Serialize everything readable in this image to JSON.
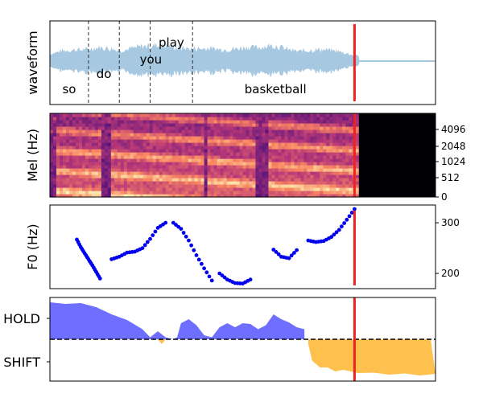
{
  "chart_data": [
    {
      "type": "line",
      "panel": "waveform",
      "ylabel": "waveform",
      "words": [
        {
          "text": "so",
          "pos": "low"
        },
        {
          "text": "do",
          "pos": "mid"
        },
        {
          "text": "you",
          "pos": "mid"
        },
        {
          "text": "play",
          "pos": "high"
        },
        {
          "text": "basketball",
          "pos": "low"
        }
      ],
      "word_boundaries": [
        0.1,
        0.18,
        0.26,
        0.37
      ],
      "marker_t": 0.79,
      "speech_end_t": 0.8,
      "colors": {
        "wave": "#a6c8e0",
        "marker": "#ee2222",
        "boundary": "#333333"
      }
    },
    {
      "type": "heatmap",
      "panel": "mel-spectrogram",
      "ylabel": "Mel (Hz)",
      "yticks": [
        "0",
        "512",
        "1024",
        "2048",
        "4096"
      ],
      "marker_t": 0.79,
      "speech_end_t": 0.8,
      "colormap": "magma"
    },
    {
      "type": "scatter",
      "panel": "f0",
      "ylabel": "F0 (Hz)",
      "ylim": [
        170,
        335
      ],
      "yticks": [
        "200",
        "300"
      ],
      "ytick_values": [
        200,
        300
      ],
      "point_color": "#0000ee",
      "segments": [
        {
          "t": [
            0.07,
            0.08,
            0.09,
            0.1,
            0.11,
            0.12,
            0.13
          ],
          "f0": [
            267,
            252,
            240,
            228,
            216,
            203,
            190
          ]
        },
        {
          "t": [
            0.16,
            0.18,
            0.2,
            0.22,
            0.24,
            0.26,
            0.28,
            0.3
          ],
          "f0": [
            228,
            233,
            241,
            243,
            250,
            268,
            290,
            300
          ]
        },
        {
          "t": [
            0.32,
            0.34,
            0.36,
            0.38,
            0.4,
            0.42
          ],
          "f0": [
            300,
            288,
            265,
            236,
            210,
            186
          ]
        },
        {
          "t": [
            0.44,
            0.46,
            0.48,
            0.5,
            0.52
          ],
          "f0": [
            200,
            188,
            181,
            180,
            188
          ]
        },
        {
          "t": [
            0.58,
            0.6,
            0.62,
            0.64
          ],
          "f0": [
            247,
            233,
            230,
            246
          ]
        },
        {
          "t": [
            0.67,
            0.69,
            0.71,
            0.73,
            0.75,
            0.77,
            0.79
          ],
          "f0": [
            265,
            262,
            264,
            272,
            286,
            306,
            327
          ]
        }
      ],
      "marker_t": 0.79
    },
    {
      "type": "area",
      "panel": "turn-taking",
      "ytick_labels": [
        "HOLD",
        "SHIFT"
      ],
      "colors": {
        "hold": "#6666ff",
        "shift": "#ffc14d",
        "marker": "#ee2222"
      },
      "hold": {
        "t": [
          0,
          0.04,
          0.08,
          0.12,
          0.16,
          0.2,
          0.24,
          0.26,
          0.28,
          0.3,
          0.32,
          0.33,
          0.34,
          0.36,
          0.38,
          0.4,
          0.42,
          0.44,
          0.46,
          0.48,
          0.5,
          0.52,
          0.54,
          0.56,
          0.58,
          0.6,
          0.62,
          0.64,
          0.66
        ],
        "v": [
          0.92,
          0.88,
          0.9,
          0.8,
          0.62,
          0.48,
          0.25,
          0.05,
          0.2,
          0.05,
          0,
          0.05,
          0.4,
          0.5,
          0.35,
          0.1,
          0.05,
          0.3,
          0.4,
          0.3,
          0.4,
          0.38,
          0.25,
          0.35,
          0.62,
          0.5,
          0.42,
          0.3,
          0.25
        ]
      },
      "shift": {
        "t": [
          0.28,
          0.29,
          0.3,
          0.67,
          0.68,
          0.7,
          0.72,
          0.74,
          0.76,
          0.8,
          0.84,
          0.88,
          0.92,
          0.96,
          1.0
        ],
        "v": [
          0,
          -0.12,
          0,
          -0.1,
          -0.55,
          -0.68,
          -0.72,
          -0.78,
          -0.78,
          -0.82,
          -0.85,
          -0.86,
          -0.87,
          -0.88,
          -0.88
        ]
      },
      "marker_t": 0.79
    }
  ]
}
